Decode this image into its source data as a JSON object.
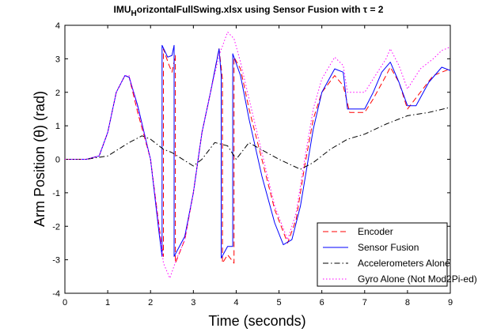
{
  "chart_data": {
    "type": "line",
    "title": {
      "main": "IMU",
      "subscript": "H",
      "rest": "orizontalFullSwing.xlsx using Sensor Fusion with",
      "tau_symbol": "τ",
      "tau_value": "= 2"
    },
    "xlabel": "Time (seconds)",
    "ylabel": {
      "before": "Arm Position (",
      "symbol": "θ",
      "after": ") (rad)"
    },
    "xlim": [
      0,
      9
    ],
    "ylim": [
      -4,
      4
    ],
    "xticks": [
      "0",
      "1",
      "2",
      "3",
      "4",
      "5",
      "6",
      "7",
      "8",
      "9"
    ],
    "yticks": [
      "-4",
      "-3",
      "-2",
      "-1",
      "0",
      "1",
      "2",
      "3",
      "4"
    ],
    "grid": false,
    "legend_position": "bottom-right",
    "series": [
      {
        "name": "Encoder",
        "color": "#ff0000",
        "style": "dashed",
        "points": [
          [
            0,
            0
          ],
          [
            0.5,
            0
          ],
          [
            0.8,
            0.1
          ],
          [
            1.0,
            0.8
          ],
          [
            1.2,
            2.0
          ],
          [
            1.4,
            2.5
          ],
          [
            1.5,
            2.45
          ],
          [
            1.7,
            1.4
          ],
          [
            2.0,
            0
          ],
          [
            2.2,
            -2.0
          ],
          [
            2.3,
            -2.9
          ],
          [
            2.3,
            3.3
          ],
          [
            2.42,
            2.85
          ],
          [
            2.5,
            2.6
          ],
          [
            2.58,
            3.1
          ],
          [
            2.58,
            -3.1
          ],
          [
            2.8,
            -2.4
          ],
          [
            3.0,
            -1.0
          ],
          [
            3.2,
            0.8
          ],
          [
            3.4,
            2.0
          ],
          [
            3.6,
            3.3
          ],
          [
            3.68,
            2.4
          ],
          [
            3.68,
            -3.1
          ],
          [
            3.8,
            -2.85
          ],
          [
            3.95,
            -3.1
          ],
          [
            3.95,
            3.05
          ],
          [
            4.1,
            2.7
          ],
          [
            4.3,
            1.5
          ],
          [
            4.6,
            0
          ],
          [
            4.9,
            -1.5
          ],
          [
            5.2,
            -2.5
          ],
          [
            5.4,
            -1.8
          ],
          [
            5.6,
            -0.2
          ],
          [
            5.8,
            1.2
          ],
          [
            6.0,
            2.0
          ],
          [
            6.3,
            2.5
          ],
          [
            6.5,
            2.2
          ],
          [
            6.65,
            1.4
          ],
          [
            7.0,
            1.4
          ],
          [
            7.2,
            1.8
          ],
          [
            7.5,
            2.5
          ],
          [
            7.6,
            2.75
          ],
          [
            7.8,
            2.3
          ],
          [
            8.0,
            1.5
          ],
          [
            8.3,
            2.0
          ],
          [
            8.6,
            2.5
          ],
          [
            8.8,
            2.6
          ],
          [
            9.0,
            2.7
          ]
        ]
      },
      {
        "name": "Sensor Fusion",
        "color": "#0000ff",
        "style": "solid",
        "points": [
          [
            0,
            0
          ],
          [
            0.5,
            0
          ],
          [
            0.8,
            0.1
          ],
          [
            1.0,
            0.8
          ],
          [
            1.2,
            2.0
          ],
          [
            1.4,
            2.5
          ],
          [
            1.5,
            2.45
          ],
          [
            1.7,
            1.6
          ],
          [
            2.0,
            0
          ],
          [
            2.2,
            -2.2
          ],
          [
            2.27,
            -2.9
          ],
          [
            2.27,
            3.4
          ],
          [
            2.4,
            3.05
          ],
          [
            2.5,
            3.1
          ],
          [
            2.55,
            3.4
          ],
          [
            2.55,
            -2.9
          ],
          [
            2.8,
            -2.3
          ],
          [
            3.0,
            -1.0
          ],
          [
            3.2,
            0.8
          ],
          [
            3.4,
            2.0
          ],
          [
            3.6,
            3.3
          ],
          [
            3.65,
            2.5
          ],
          [
            3.65,
            -2.95
          ],
          [
            3.8,
            -2.6
          ],
          [
            3.92,
            -2.6
          ],
          [
            3.92,
            3.15
          ],
          [
            4.1,
            2.5
          ],
          [
            4.3,
            1.2
          ],
          [
            4.6,
            -0.5
          ],
          [
            4.9,
            -1.9
          ],
          [
            5.1,
            -2.55
          ],
          [
            5.3,
            -2.4
          ],
          [
            5.5,
            -1.4
          ],
          [
            5.8,
            0.9
          ],
          [
            6.0,
            2.0
          ],
          [
            6.3,
            2.7
          ],
          [
            6.5,
            2.6
          ],
          [
            6.6,
            1.5
          ],
          [
            7.0,
            1.5
          ],
          [
            7.2,
            2.0
          ],
          [
            7.4,
            2.6
          ],
          [
            7.6,
            2.9
          ],
          [
            7.8,
            2.3
          ],
          [
            8.0,
            1.6
          ],
          [
            8.2,
            1.6
          ],
          [
            8.5,
            2.3
          ],
          [
            8.8,
            2.75
          ],
          [
            9.0,
            2.65
          ]
        ]
      },
      {
        "name": "Accelerometers Alone",
        "color": "#000000",
        "style": "dashdot",
        "points": [
          [
            0,
            0
          ],
          [
            0.5,
            0
          ],
          [
            1.0,
            0.1
          ],
          [
            1.5,
            0.5
          ],
          [
            1.8,
            0.7
          ],
          [
            2.0,
            0.6
          ],
          [
            2.3,
            0.3
          ],
          [
            2.5,
            0.2
          ],
          [
            3.0,
            -0.2
          ],
          [
            3.2,
            0
          ],
          [
            3.5,
            0.5
          ],
          [
            3.8,
            0.4
          ],
          [
            4.0,
            0
          ],
          [
            4.3,
            0.5
          ],
          [
            4.5,
            0.35
          ],
          [
            5.0,
            0
          ],
          [
            5.5,
            -0.3
          ],
          [
            5.8,
            -0.1
          ],
          [
            6.2,
            0.3
          ],
          [
            6.6,
            0.6
          ],
          [
            7.0,
            0.75
          ],
          [
            7.5,
            1.05
          ],
          [
            8.0,
            1.3
          ],
          [
            8.5,
            1.4
          ],
          [
            9.0,
            1.55
          ]
        ]
      },
      {
        "name": "Gyro Alone (Not Mod2Pi-ed)",
        "color": "#ff00ff",
        "style": "dotted",
        "points": [
          [
            0,
            0
          ],
          [
            0.5,
            0
          ],
          [
            0.8,
            0.1
          ],
          [
            1.0,
            0.8
          ],
          [
            1.2,
            2.0
          ],
          [
            1.4,
            2.5
          ],
          [
            1.5,
            2.5
          ],
          [
            1.7,
            1.5
          ],
          [
            2.0,
            0
          ],
          [
            2.2,
            -2.0
          ],
          [
            2.3,
            -3.1
          ],
          [
            2.45,
            -3.55
          ],
          [
            2.6,
            -3.0
          ],
          [
            2.8,
            -2.4
          ],
          [
            3.0,
            -1.0
          ],
          [
            3.2,
            0.8
          ],
          [
            3.4,
            2.0
          ],
          [
            3.6,
            3.1
          ],
          [
            3.8,
            3.8
          ],
          [
            3.95,
            3.6
          ],
          [
            4.1,
            2.9
          ],
          [
            4.3,
            1.8
          ],
          [
            4.6,
            0.2
          ],
          [
            4.9,
            -1.4
          ],
          [
            5.2,
            -2.4
          ],
          [
            5.4,
            -1.6
          ],
          [
            5.6,
            0
          ],
          [
            5.8,
            1.5
          ],
          [
            6.0,
            2.4
          ],
          [
            6.3,
            3.05
          ],
          [
            6.5,
            2.8
          ],
          [
            6.6,
            2.0
          ],
          [
            7.0,
            2.0
          ],
          [
            7.2,
            2.4
          ],
          [
            7.5,
            3.0
          ],
          [
            7.6,
            3.3
          ],
          [
            7.8,
            2.8
          ],
          [
            8.0,
            2.1
          ],
          [
            8.3,
            2.7
          ],
          [
            8.6,
            3.0
          ],
          [
            8.8,
            3.25
          ],
          [
            9.0,
            3.35
          ]
        ]
      }
    ]
  }
}
